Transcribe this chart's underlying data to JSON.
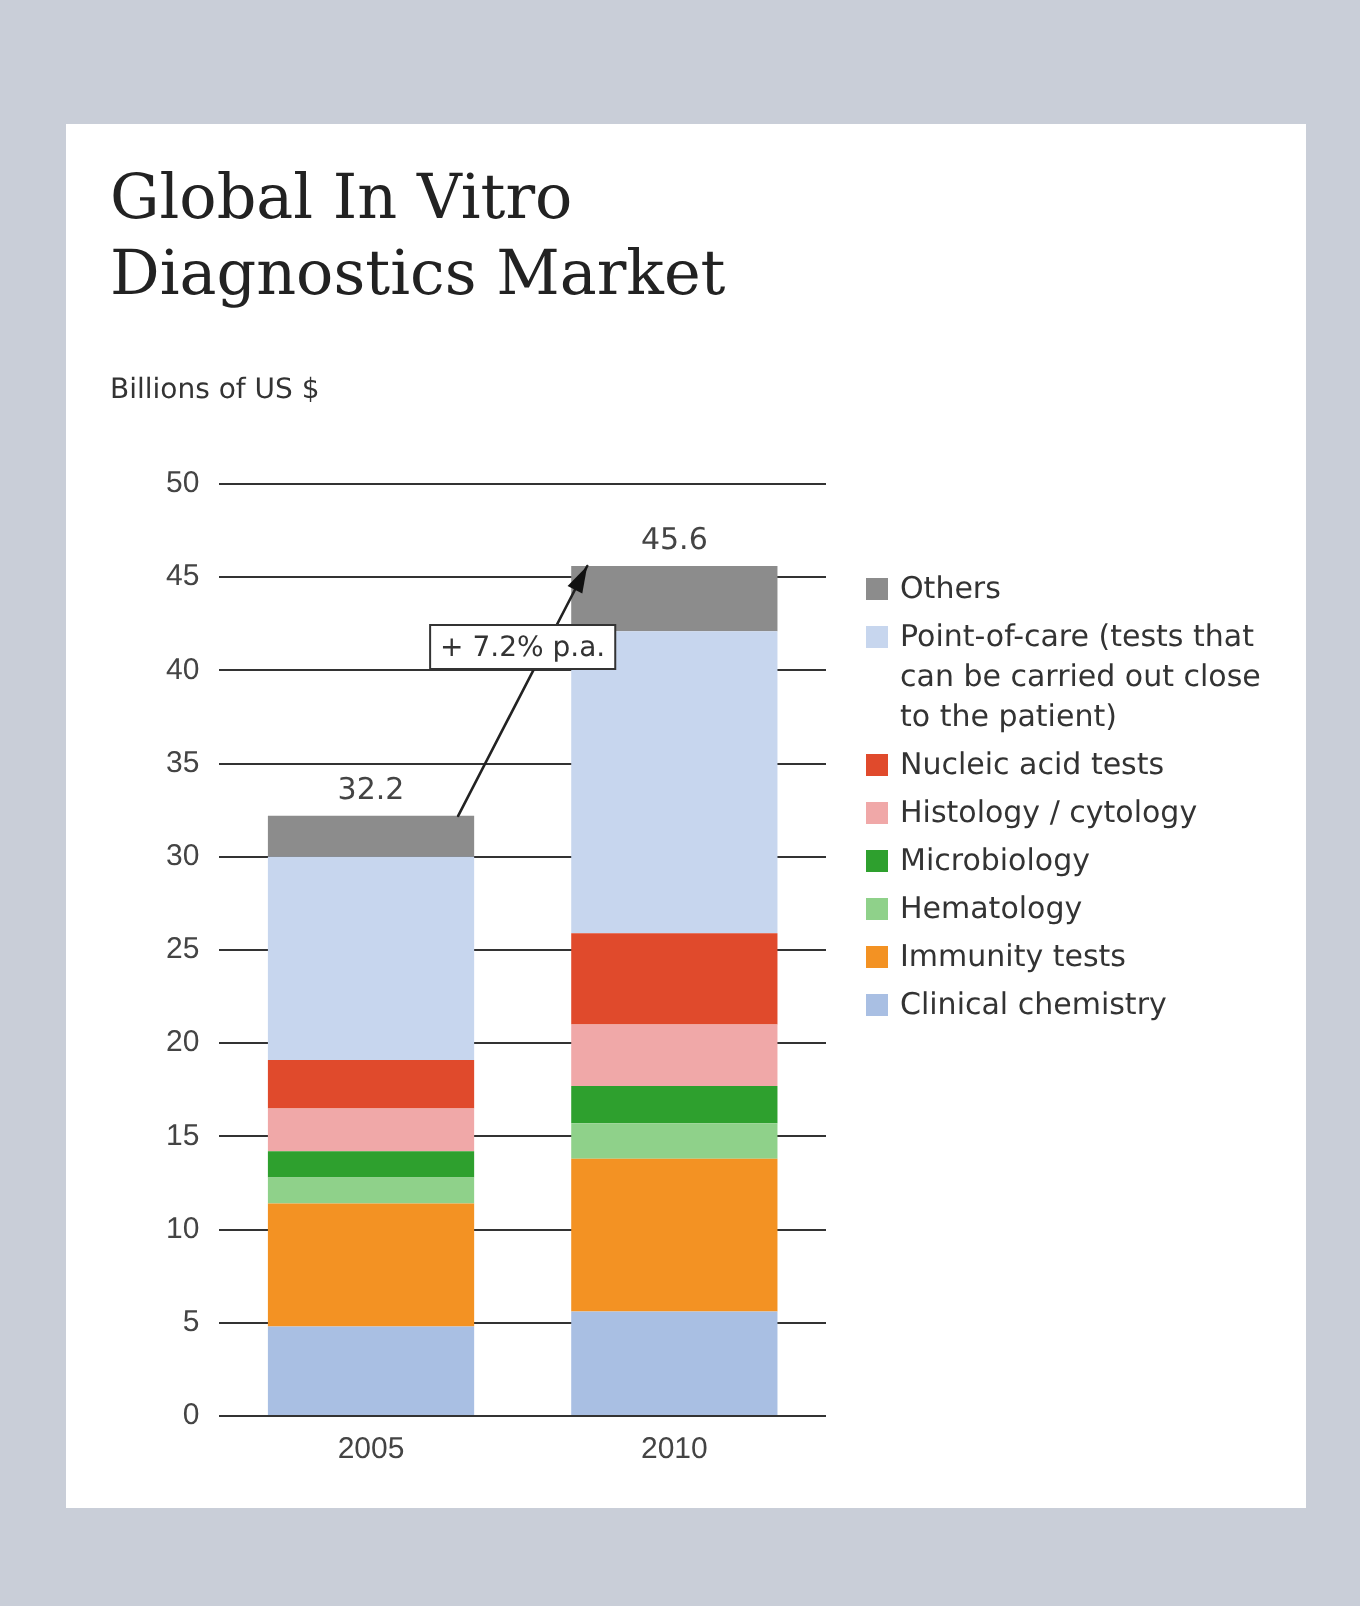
{
  "chart_data": {
    "type": "bar",
    "stacked": true,
    "title": "Global In Vitro Diagnostics Market",
    "ylabel": "Billions of US $",
    "categories": [
      "2005",
      "2010"
    ],
    "series": [
      {
        "name": "Clinical chemistry",
        "color": "#a9bfe3",
        "values": [
          4.8,
          5.6
        ]
      },
      {
        "name": "Immunity tests",
        "color": "#f39223",
        "values": [
          6.6,
          8.2
        ]
      },
      {
        "name": "Hematology",
        "color": "#8fd18a",
        "values": [
          1.4,
          1.9
        ]
      },
      {
        "name": "Microbiology",
        "color": "#2ea02e",
        "values": [
          1.4,
          2.0
        ]
      },
      {
        "name": "Histology / cytology",
        "color": "#f0a8a8",
        "values": [
          2.3,
          3.3
        ]
      },
      {
        "name": "Nucleic acid tests",
        "color": "#e04a2c",
        "values": [
          2.6,
          4.9
        ]
      },
      {
        "name": "Point-of-care (tests that can be carried out close to the patient)",
        "color": "#c7d6ee",
        "values": [
          10.9,
          16.2
        ]
      },
      {
        "name": "Others",
        "color": "#8c8c8c",
        "values": [
          2.2,
          3.5
        ]
      }
    ],
    "totals": [
      "32.2",
      "45.6"
    ],
    "annotations": [
      "+ 7.2% p.a."
    ],
    "ylim": [
      0,
      50
    ],
    "yticks": [
      0,
      5,
      10,
      15,
      20,
      25,
      30,
      35,
      40,
      45,
      50
    ],
    "grid": "y",
    "legend": "right"
  }
}
